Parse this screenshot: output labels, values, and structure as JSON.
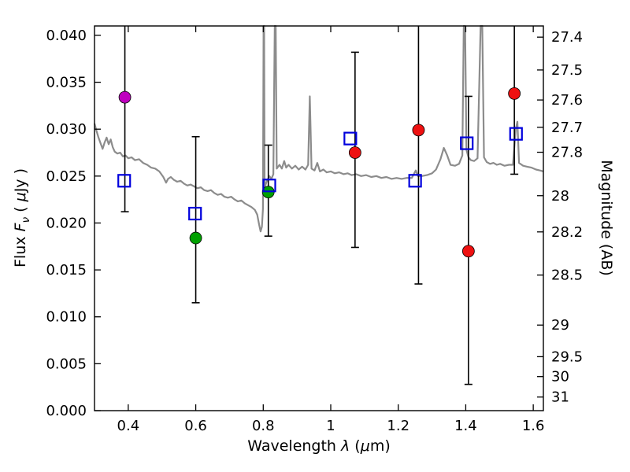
{
  "figure": {
    "background": "#ffffff"
  },
  "labels": {
    "xlabel_pre": "Wavelength ",
    "xlabel_lambda": "λ",
    "xlabel_mid": " (",
    "xlabel_mu": "μ",
    "xlabel_post": "m)",
    "ylabel_flux": "Flux ",
    "ylabel_F": "F",
    "ylabel_nu": "ν",
    "ylabel_u1": " ( ",
    "ylabel_mu": "μ",
    "ylabel_u2": "Jy )",
    "ylabel_right": "Magnitude (AB)"
  },
  "chart_data": {
    "type": "line+scatter",
    "title": "",
    "xlabel": "Wavelength λ (μm)",
    "ylabel_left": "Flux Fν (μJy)",
    "ylabel_right": "Magnitude (AB)",
    "xlim": [
      0.3,
      1.63
    ],
    "ylim": [
      0.0,
      0.041
    ],
    "grid": false,
    "legend": "none",
    "x_ticks": [
      {
        "v": 0.4,
        "label": "0.4"
      },
      {
        "v": 0.6,
        "label": "0.6"
      },
      {
        "v": 0.8,
        "label": "0.8"
      },
      {
        "v": 1.0,
        "label": "1"
      },
      {
        "v": 1.2,
        "label": "1.2"
      },
      {
        "v": 1.4,
        "label": "1.4"
      },
      {
        "v": 1.6,
        "label": "1.6"
      }
    ],
    "y_ticks_left": [
      {
        "v": 0.0,
        "label": "0.000"
      },
      {
        "v": 0.005,
        "label": "0.005"
      },
      {
        "v": 0.01,
        "label": "0.010"
      },
      {
        "v": 0.015,
        "label": "0.015"
      },
      {
        "v": 0.02,
        "label": "0.020"
      },
      {
        "v": 0.025,
        "label": "0.025"
      },
      {
        "v": 0.03,
        "label": "0.030"
      },
      {
        "v": 0.035,
        "label": "0.035"
      },
      {
        "v": 0.04,
        "label": "0.040"
      }
    ],
    "y_ticks_right": [
      {
        "v": 0.03981,
        "label": "27.4"
      },
      {
        "v": 0.03631,
        "label": "27.5"
      },
      {
        "v": 0.03311,
        "label": "27.6"
      },
      {
        "v": 0.0302,
        "label": "27.7"
      },
      {
        "v": 0.02754,
        "label": "27.8"
      },
      {
        "v": 0.02291,
        "label": "28"
      },
      {
        "v": 0.01905,
        "label": "28.2"
      },
      {
        "v": 0.01445,
        "label": "28.5"
      },
      {
        "v": 0.00912,
        "label": "29"
      },
      {
        "v": 0.00575,
        "label": "29.5"
      },
      {
        "v": 0.00363,
        "label": "30"
      },
      {
        "v": 0.00145,
        "label": "31"
      }
    ],
    "series": [
      {
        "name": "photometry-magenta",
        "marker": "circle",
        "color": "#bf00bf",
        "points": [
          {
            "x": 0.39,
            "y": 0.0334,
            "lo": 0.0212,
            "hi": 0.05
          }
        ]
      },
      {
        "name": "photometry-green",
        "marker": "circle",
        "color": "#00a000",
        "points": [
          {
            "x": 0.6,
            "y": 0.0184,
            "lo": 0.0115,
            "hi": 0.0292
          },
          {
            "x": 0.815,
            "y": 0.0233,
            "lo": 0.0186,
            "hi": 0.0283
          }
        ]
      },
      {
        "name": "photometry-red",
        "marker": "circle",
        "color": "#ee1111",
        "points": [
          {
            "x": 1.072,
            "y": 0.0275,
            "lo": 0.0174,
            "hi": 0.0382
          },
          {
            "x": 1.26,
            "y": 0.0299,
            "lo": 0.0135,
            "hi": 0.05
          },
          {
            "x": 1.408,
            "y": 0.017,
            "lo": 0.0028,
            "hi": 0.0335
          },
          {
            "x": 1.544,
            "y": 0.0338,
            "lo": 0.0252,
            "hi": 0.05
          }
        ]
      },
      {
        "name": "model-photometry-square",
        "marker": "open-square",
        "color": "#0000dd",
        "points": [
          {
            "x": 0.388,
            "y": 0.0245
          },
          {
            "x": 0.598,
            "y": 0.021
          },
          {
            "x": 0.818,
            "y": 0.024
          },
          {
            "x": 1.058,
            "y": 0.029
          },
          {
            "x": 1.25,
            "y": 0.0245
          },
          {
            "x": 1.403,
            "y": 0.0285
          },
          {
            "x": 1.549,
            "y": 0.0295
          }
        ]
      }
    ],
    "spectrum": {
      "name": "model-spectrum",
      "color": "#8c8c8c",
      "points": [
        [
          0.3,
          0.0306
        ],
        [
          0.306,
          0.0298
        ],
        [
          0.312,
          0.0291
        ],
        [
          0.318,
          0.0285
        ],
        [
          0.324,
          0.0279
        ],
        [
          0.33,
          0.0286
        ],
        [
          0.336,
          0.0291
        ],
        [
          0.342,
          0.0284
        ],
        [
          0.348,
          0.0289
        ],
        [
          0.354,
          0.0281
        ],
        [
          0.36,
          0.0276
        ],
        [
          0.368,
          0.0274
        ],
        [
          0.376,
          0.0275
        ],
        [
          0.384,
          0.0271
        ],
        [
          0.392,
          0.0272
        ],
        [
          0.4,
          0.0269
        ],
        [
          0.41,
          0.027
        ],
        [
          0.42,
          0.0267
        ],
        [
          0.432,
          0.0268
        ],
        [
          0.444,
          0.0264
        ],
        [
          0.456,
          0.0262
        ],
        [
          0.468,
          0.0259
        ],
        [
          0.48,
          0.0258
        ],
        [
          0.492,
          0.0255
        ],
        [
          0.504,
          0.0249
        ],
        [
          0.512,
          0.0243
        ],
        [
          0.518,
          0.0247
        ],
        [
          0.526,
          0.0249
        ],
        [
          0.535,
          0.0246
        ],
        [
          0.545,
          0.0244
        ],
        [
          0.555,
          0.0245
        ],
        [
          0.565,
          0.0242
        ],
        [
          0.575,
          0.024
        ],
        [
          0.585,
          0.0241
        ],
        [
          0.595,
          0.0239
        ],
        [
          0.605,
          0.0237
        ],
        [
          0.615,
          0.0238
        ],
        [
          0.625,
          0.0235
        ],
        [
          0.635,
          0.0234
        ],
        [
          0.645,
          0.0235
        ],
        [
          0.655,
          0.0232
        ],
        [
          0.665,
          0.023
        ],
        [
          0.675,
          0.0231
        ],
        [
          0.685,
          0.0228
        ],
        [
          0.695,
          0.0227
        ],
        [
          0.705,
          0.0228
        ],
        [
          0.715,
          0.0225
        ],
        [
          0.725,
          0.0223
        ],
        [
          0.735,
          0.0224
        ],
        [
          0.745,
          0.0221
        ],
        [
          0.755,
          0.0219
        ],
        [
          0.765,
          0.0217
        ],
        [
          0.775,
          0.0214
        ],
        [
          0.782,
          0.0209
        ],
        [
          0.788,
          0.0198
        ],
        [
          0.792,
          0.0191
        ],
        [
          0.796,
          0.0196
        ],
        [
          0.799,
          0.0215
        ],
        [
          0.801,
          0.055
        ],
        [
          0.8025,
          0.055
        ],
        [
          0.804,
          0.0238
        ],
        [
          0.81,
          0.0244
        ],
        [
          0.818,
          0.025
        ],
        [
          0.824,
          0.0247
        ],
        [
          0.83,
          0.0252
        ],
        [
          0.834,
          0.055
        ],
        [
          0.837,
          0.055
        ],
        [
          0.84,
          0.0258
        ],
        [
          0.848,
          0.0262
        ],
        [
          0.855,
          0.0258
        ],
        [
          0.862,
          0.0266
        ],
        [
          0.868,
          0.0259
        ],
        [
          0.875,
          0.0262
        ],
        [
          0.885,
          0.0258
        ],
        [
          0.895,
          0.0261
        ],
        [
          0.905,
          0.0257
        ],
        [
          0.915,
          0.026
        ],
        [
          0.925,
          0.0257
        ],
        [
          0.933,
          0.0262
        ],
        [
          0.938,
          0.0335
        ],
        [
          0.943,
          0.0258
        ],
        [
          0.952,
          0.0256
        ],
        [
          0.96,
          0.0264
        ],
        [
          0.968,
          0.0255
        ],
        [
          0.978,
          0.0257
        ],
        [
          0.988,
          0.0254
        ],
        [
          1.0,
          0.0255
        ],
        [
          1.012,
          0.0253
        ],
        [
          1.025,
          0.0254
        ],
        [
          1.038,
          0.0252
        ],
        [
          1.05,
          0.0253
        ],
        [
          1.062,
          0.0251
        ],
        [
          1.075,
          0.0252
        ],
        [
          1.09,
          0.025
        ],
        [
          1.105,
          0.0251
        ],
        [
          1.12,
          0.0249
        ],
        [
          1.135,
          0.025
        ],
        [
          1.15,
          0.0248
        ],
        [
          1.165,
          0.0249
        ],
        [
          1.18,
          0.0247
        ],
        [
          1.195,
          0.0248
        ],
        [
          1.21,
          0.0247
        ],
        [
          1.225,
          0.0248
        ],
        [
          1.24,
          0.0248
        ],
        [
          1.252,
          0.0256
        ],
        [
          1.258,
          0.025
        ],
        [
          1.27,
          0.025
        ],
        [
          1.285,
          0.0251
        ],
        [
          1.3,
          0.0253
        ],
        [
          1.312,
          0.0257
        ],
        [
          1.325,
          0.0268
        ],
        [
          1.335,
          0.028
        ],
        [
          1.345,
          0.0272
        ],
        [
          1.355,
          0.0262
        ],
        [
          1.368,
          0.0261
        ],
        [
          1.38,
          0.0263
        ],
        [
          1.39,
          0.0272
        ],
        [
          1.394,
          0.055
        ],
        [
          1.398,
          0.055
        ],
        [
          1.402,
          0.0278
        ],
        [
          1.408,
          0.027
        ],
        [
          1.415,
          0.0267
        ],
        [
          1.425,
          0.0266
        ],
        [
          1.435,
          0.0269
        ],
        [
          1.444,
          0.055
        ],
        [
          1.449,
          0.055
        ],
        [
          1.454,
          0.027
        ],
        [
          1.462,
          0.0265
        ],
        [
          1.472,
          0.0263
        ],
        [
          1.482,
          0.0264
        ],
        [
          1.492,
          0.0262
        ],
        [
          1.502,
          0.0263
        ],
        [
          1.515,
          0.0261
        ],
        [
          1.528,
          0.0262
        ],
        [
          1.54,
          0.0262
        ],
        [
          1.548,
          0.03
        ],
        [
          1.553,
          0.0308
        ],
        [
          1.558,
          0.0264
        ],
        [
          1.57,
          0.0261
        ],
        [
          1.582,
          0.026
        ],
        [
          1.595,
          0.0259
        ],
        [
          1.608,
          0.0257
        ],
        [
          1.62,
          0.0256
        ],
        [
          1.63,
          0.0255
        ]
      ]
    }
  }
}
